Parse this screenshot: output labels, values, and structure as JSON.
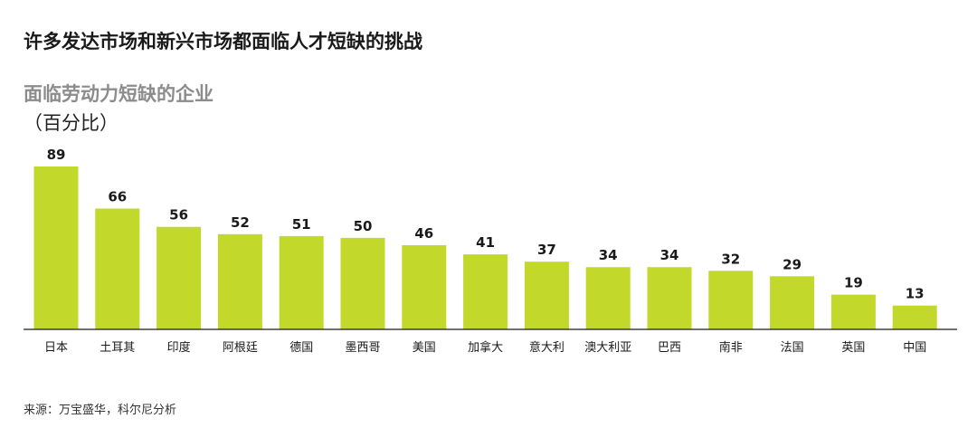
{
  "title": "许多发达市场和新兴市场都面临人才短缺的挑战",
  "chart_data": {
    "type": "bar",
    "title": "面临劳动力短缺的企业",
    "unit": "（百分比）",
    "categories": [
      "日本",
      "土耳其",
      "印度",
      "阿根廷",
      "德国",
      "墨西哥",
      "美国",
      "加拿大",
      "意大利",
      "澳大利亚",
      "巴西",
      "南非",
      "法国",
      "英国",
      "中国"
    ],
    "values": [
      89,
      66,
      56,
      52,
      51,
      50,
      46,
      41,
      37,
      34,
      34,
      32,
      29,
      19,
      13
    ],
    "data_labels": [
      "89",
      "66",
      "56",
      "52",
      "51",
      "50",
      "46",
      "41",
      "37",
      "34",
      "34",
      "32",
      "29",
      "19",
      "13"
    ],
    "ylim": [
      0,
      89
    ],
    "grid": false,
    "bar_color": "#c2d92b",
    "axis_color": "#1a1a1a"
  },
  "source": "来源：万宝盛华，科尔尼分析"
}
